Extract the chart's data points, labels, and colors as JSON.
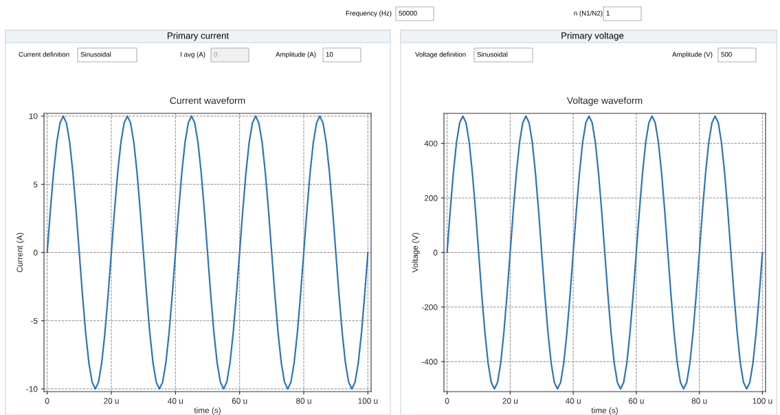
{
  "chart_data": [
    {
      "type": "line",
      "title": "Current waveform",
      "xlabel": "time (s)",
      "ylabel": "Current (A)",
      "annotations": [
        "Frequency (Hz)",
        "50000",
        "n (N1/N2)",
        "1",
        "Primary current",
        "Current definition",
        "Sinusoidal",
        "I avg (A)",
        "0",
        "Amplitude (A)",
        "10"
      ],
      "x": [
        0,
        1,
        2,
        3,
        4,
        5,
        6,
        7,
        8,
        9,
        10,
        11,
        12,
        13,
        14,
        15,
        16,
        17,
        18,
        19,
        20,
        21,
        22,
        23,
        24,
        25,
        26,
        27,
        28,
        29,
        30,
        31,
        32,
        33,
        34,
        35,
        36,
        37,
        38,
        39,
        40,
        41,
        42,
        43,
        44,
        45,
        46,
        47,
        48,
        49,
        50,
        51,
        52,
        53,
        54,
        55,
        56,
        57,
        58,
        59,
        60,
        61,
        62,
        63,
        64,
        65,
        66,
        67,
        68,
        69,
        70,
        71,
        72,
        73,
        74,
        75,
        76,
        77,
        78,
        79,
        80,
        81,
        82,
        83,
        84,
        85,
        86,
        87,
        88,
        89,
        90,
        91,
        92,
        93,
        94,
        95,
        96,
        97,
        98,
        99,
        100
      ],
      "series": [
        {
          "color": "#2e75b6",
          "values": [
            0,
            3.1,
            5.9,
            8.1,
            9.5,
            10,
            9.5,
            8.1,
            5.9,
            3.1,
            0,
            -3.1,
            -5.9,
            -8.1,
            -9.5,
            -10,
            -9.5,
            -8.1,
            -5.9,
            -3.1,
            0,
            3.1,
            5.9,
            8.1,
            9.5,
            10,
            9.5,
            8.1,
            5.9,
            3.1,
            0,
            -3.1,
            -5.9,
            -8.1,
            -9.5,
            -10,
            -9.5,
            -8.1,
            -5.9,
            -3.1,
            0,
            3.1,
            5.9,
            8.1,
            9.5,
            10,
            9.5,
            8.1,
            5.9,
            3.1,
            0,
            -3.1,
            -5.9,
            -8.1,
            -9.5,
            -10,
            -9.5,
            -8.1,
            -5.9,
            -3.1,
            0,
            3.1,
            5.9,
            8.1,
            9.5,
            10,
            9.5,
            8.1,
            5.9,
            3.1,
            0,
            -3.1,
            -5.9,
            -8.1,
            -9.5,
            -10,
            -9.5,
            -8.1,
            -5.9,
            -3.1,
            0,
            3.1,
            5.9,
            8.1,
            9.5,
            10,
            9.5,
            8.1,
            5.9,
            3.1,
            0,
            -3.1,
            -5.9,
            -8.1,
            -9.5,
            -10,
            -9.5,
            -8.1,
            -5.9,
            -3.1,
            0
          ]
        }
      ],
      "xlim": [
        -1,
        101
      ],
      "xticks": [
        0,
        {
          "value": 20,
          "label": "20 u"
        },
        {
          "value": 40,
          "label": "40 u"
        },
        {
          "value": 60,
          "label": "60 u"
        },
        {
          "value": 80,
          "label": "80 u"
        },
        {
          "value": 100,
          "label": "100 u"
        }
      ],
      "ylim": [
        -10.2,
        10.2
      ],
      "yticks": [
        -10,
        -5,
        0,
        5,
        10
      ],
      "grid": true
    },
    {
      "type": "line",
      "title": "Voltage waveform",
      "xlabel": "time (s)",
      "ylabel": "Voltage (V)",
      "annotations": [
        "Primary voltage",
        "Voltage definition",
        "Sinusoidal",
        "Amplitude (V)",
        "500"
      ],
      "x": [
        0,
        1,
        2,
        3,
        4,
        5,
        6,
        7,
        8,
        9,
        10,
        11,
        12,
        13,
        14,
        15,
        16,
        17,
        18,
        19,
        20,
        21,
        22,
        23,
        24,
        25,
        26,
        27,
        28,
        29,
        30,
        31,
        32,
        33,
        34,
        35,
        36,
        37,
        38,
        39,
        40,
        41,
        42,
        43,
        44,
        45,
        46,
        47,
        48,
        49,
        50,
        51,
        52,
        53,
        54,
        55,
        56,
        57,
        58,
        59,
        60,
        61,
        62,
        63,
        64,
        65,
        66,
        67,
        68,
        69,
        70,
        71,
        72,
        73,
        74,
        75,
        76,
        77,
        78,
        79,
        80,
        81,
        82,
        83,
        84,
        85,
        86,
        87,
        88,
        89,
        90,
        91,
        92,
        93,
        94,
        95,
        96,
        97,
        98,
        99,
        100
      ],
      "series": [
        {
          "color": "#2e75b6",
          "values": [
            0,
            155,
            294,
            405,
            476,
            500,
            476,
            405,
            294,
            155,
            0,
            -155,
            -294,
            -405,
            -476,
            -500,
            -476,
            -405,
            -294,
            -155,
            0,
            155,
            294,
            405,
            476,
            500,
            476,
            405,
            294,
            155,
            0,
            -155,
            -294,
            -405,
            -476,
            -500,
            -476,
            -405,
            -294,
            -155,
            0,
            155,
            294,
            405,
            476,
            500,
            476,
            405,
            294,
            155,
            0,
            -155,
            -294,
            -405,
            -476,
            -500,
            -476,
            -405,
            -294,
            -155,
            0,
            155,
            294,
            405,
            476,
            500,
            476,
            405,
            294,
            155,
            0,
            -155,
            -294,
            -405,
            -476,
            -500,
            -476,
            -405,
            -294,
            -155,
            0,
            155,
            294,
            405,
            476,
            500,
            476,
            405,
            294,
            155,
            0,
            -155,
            -294,
            -405,
            -476,
            -500,
            -476,
            -405,
            -294,
            -155,
            0
          ]
        }
      ],
      "xlim": [
        -1,
        101
      ],
      "xticks": [
        0,
        {
          "value": 20,
          "label": "20 u"
        },
        {
          "value": 40,
          "label": "40 u"
        },
        {
          "value": 60,
          "label": "60 u"
        },
        {
          "value": 80,
          "label": "80 u"
        },
        {
          "value": 100,
          "label": "100 u"
        }
      ],
      "ylim": [
        -510,
        510
      ],
      "yticks": [
        -400,
        -200,
        0,
        200,
        400
      ],
      "grid": true
    }
  ]
}
